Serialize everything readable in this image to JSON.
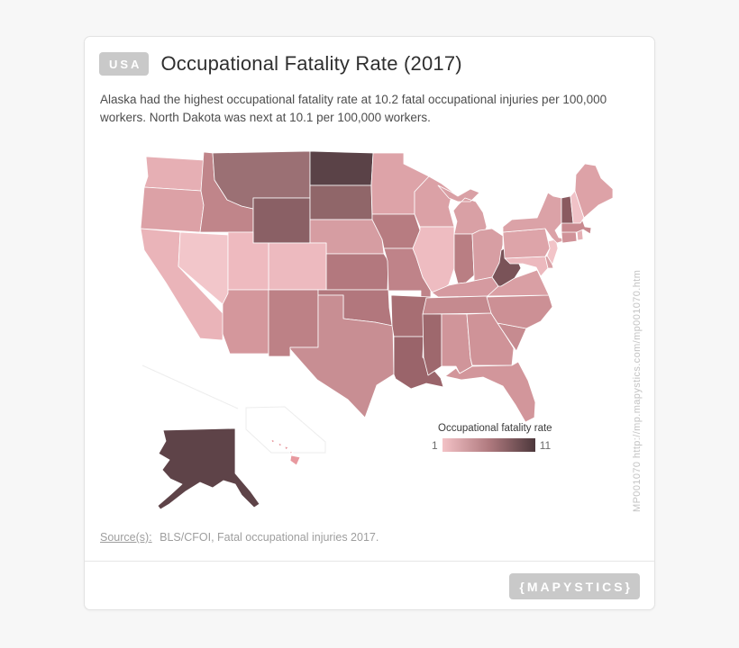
{
  "header": {
    "badge": "USA",
    "title": "Occupational Fatality Rate (2017)",
    "subtitle": "Alaska had the highest occupational fatality rate at 10.2 fatal occupational injuries per 100,000 workers. North Dakota was next at 10.1 per 100,000 workers."
  },
  "legend": {
    "title": "Occupational fatality rate",
    "min_label": "1",
    "max_label": "11",
    "gradient_start": "#f3c2c6",
    "gradient_mid": "#b07a7f",
    "gradient_end": "#4d383c"
  },
  "watermark": {
    "text": "MP001070 http://mp.mapystics.com/mp001070.htm"
  },
  "source": {
    "label": "Source(s):",
    "text": "BLS/CFOI, Fatal occupational injuries 2017."
  },
  "footer": {
    "logo": "{MAPYSTICS}"
  },
  "colors": {
    "page_background": "#f7f7f7",
    "card_background": "#ffffff",
    "badge_background": "#c9c9c9",
    "state_border": "#ffffff"
  },
  "chart_data": {
    "type": "choropleth",
    "geography": "United States (50 states, Alaska and Hawaii insets)",
    "title": "Occupational Fatality Rate (2017)",
    "unit": "fatal occupational injuries per 100,000 workers",
    "color_scale": {
      "min": 1,
      "max": 11,
      "min_color": "#f3c2c6",
      "max_color": "#4d383c"
    },
    "stated_values": [
      {
        "state": "Alaska",
        "value": 10.2
      },
      {
        "state": "North Dakota",
        "value": 10.1
      }
    ],
    "values_estimated_from_shading": true,
    "states": [
      {
        "abbr": "WA",
        "name": "Washington",
        "value": 3.0,
        "color": "#e6afb4"
      },
      {
        "abbr": "OR",
        "name": "Oregon",
        "value": 3.6,
        "color": "#dca1a6"
      },
      {
        "abbr": "CA",
        "name": "California",
        "value": 2.3,
        "color": "#eab4b9"
      },
      {
        "abbr": "NV",
        "name": "Nevada",
        "value": 1.9,
        "color": "#f2c6ca"
      },
      {
        "abbr": "ID",
        "name": "Idaho",
        "value": 5.0,
        "color": "#c0858a"
      },
      {
        "abbr": "MT",
        "name": "Montana",
        "value": 6.8,
        "color": "#9b7074"
      },
      {
        "abbr": "WY",
        "name": "Wyoming",
        "value": 7.7,
        "color": "#8a6065"
      },
      {
        "abbr": "ND",
        "name": "North Dakota",
        "value": 10.1,
        "color": "#5a4247"
      },
      {
        "abbr": "SD",
        "name": "South Dakota",
        "value": 7.4,
        "color": "#906669"
      },
      {
        "abbr": "NE",
        "name": "Nebraska",
        "value": 3.6,
        "color": "#d69da2"
      },
      {
        "abbr": "KS",
        "name": "Kansas",
        "value": 5.6,
        "color": "#b3787e"
      },
      {
        "abbr": "CO",
        "name": "Colorado",
        "value": 2.4,
        "color": "#edbabf"
      },
      {
        "abbr": "UT",
        "name": "Utah",
        "value": 2.4,
        "color": "#eebabf"
      },
      {
        "abbr": "AZ",
        "name": "Arizona",
        "value": 3.9,
        "color": "#d4979c"
      },
      {
        "abbr": "NM",
        "name": "New Mexico",
        "value": 5.0,
        "color": "#bd8186"
      },
      {
        "abbr": "OK",
        "name": "Oklahoma",
        "value": 5.7,
        "color": "#b2777d"
      },
      {
        "abbr": "TX",
        "name": "Texas",
        "value": 4.3,
        "color": "#c88e93"
      },
      {
        "abbr": "MN",
        "name": "Minnesota",
        "value": 3.4,
        "color": "#dda3a8"
      },
      {
        "abbr": "IA",
        "name": "Iowa",
        "value": 5.5,
        "color": "#b77c81"
      },
      {
        "abbr": "MO",
        "name": "Missouri",
        "value": 5.1,
        "color": "#bf8389"
      },
      {
        "abbr": "AR",
        "name": "Arkansas",
        "value": 6.4,
        "color": "#a76e73"
      },
      {
        "abbr": "LA",
        "name": "Louisiana",
        "value": 6.6,
        "color": "#9a646a"
      },
      {
        "abbr": "WI",
        "name": "Wisconsin",
        "value": 3.5,
        "color": "#dba1a6"
      },
      {
        "abbr": "IL",
        "name": "Illinois",
        "value": 2.0,
        "color": "#eebcc1"
      },
      {
        "abbr": "MI",
        "name": "Michigan",
        "value": 3.4,
        "color": "#d9a0a5"
      },
      {
        "abbr": "IN",
        "name": "Indiana",
        "value": 5.3,
        "color": "#b97e83"
      },
      {
        "abbr": "OH",
        "name": "Ohio",
        "value": 3.5,
        "color": "#d79ea3"
      },
      {
        "abbr": "KY",
        "name": "Kentucky",
        "value": 3.7,
        "color": "#d59aa0"
      },
      {
        "abbr": "TN",
        "name": "Tennessee",
        "value": 4.4,
        "color": "#c58a8f"
      },
      {
        "abbr": "MS",
        "name": "Mississippi",
        "value": 6.7,
        "color": "#9e686d"
      },
      {
        "abbr": "AL",
        "name": "Alabama",
        "value": 4.2,
        "color": "#d0959a"
      },
      {
        "abbr": "GA",
        "name": "Georgia",
        "value": 4.0,
        "color": "#cf9398"
      },
      {
        "abbr": "FL",
        "name": "Florida",
        "value": 3.9,
        "color": "#d2969b"
      },
      {
        "abbr": "SC",
        "name": "South Carolina",
        "value": 4.4,
        "color": "#c68b90"
      },
      {
        "abbr": "NC",
        "name": "North Carolina",
        "value": 4.1,
        "color": "#cc9095"
      },
      {
        "abbr": "VA",
        "name": "Virginia",
        "value": 3.3,
        "color": "#d99fa4"
      },
      {
        "abbr": "WV",
        "name": "West Virginia",
        "value": 8.8,
        "color": "#7a5358"
      },
      {
        "abbr": "MD",
        "name": "Maryland",
        "value": 2.5,
        "color": "#ecb9be"
      },
      {
        "abbr": "DE",
        "name": "Delaware",
        "value": 3.2,
        "color": "#d8a0a5"
      },
      {
        "abbr": "NJ",
        "name": "New Jersey",
        "value": 1.6,
        "color": "#f2c4c8"
      },
      {
        "abbr": "PA",
        "name": "Pennsylvania",
        "value": 3.4,
        "color": "#dda4a9"
      },
      {
        "abbr": "NY",
        "name": "New York",
        "value": 3.3,
        "color": "#dba2a7"
      },
      {
        "abbr": "CT",
        "name": "Connecticut",
        "value": 4.1,
        "color": "#d09298"
      },
      {
        "abbr": "RI",
        "name": "Rhode Island",
        "value": 2.2,
        "color": "#e5b0b5"
      },
      {
        "abbr": "MA",
        "name": "Massachusetts",
        "value": 4.6,
        "color": "#c8898f"
      },
      {
        "abbr": "VT",
        "name": "Vermont",
        "value": 8.0,
        "color": "#8a5a60"
      },
      {
        "abbr": "NH",
        "name": "New Hampshire",
        "value": 2.0,
        "color": "#f0c2c7"
      },
      {
        "abbr": "ME",
        "name": "Maine",
        "value": 3.4,
        "color": "#dda2a7"
      },
      {
        "abbr": "AK",
        "name": "Alaska",
        "value": 10.2,
        "color": "#5e4348"
      },
      {
        "abbr": "HI",
        "name": "Hawaii",
        "value": 3.0,
        "color": "#e8999f"
      }
    ]
  }
}
